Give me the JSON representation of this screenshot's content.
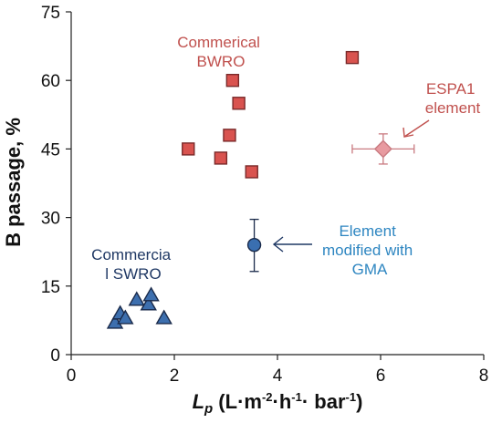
{
  "chart_data": {
    "type": "scatter",
    "xlim": [
      0,
      8
    ],
    "ylim": [
      0,
      75
    ],
    "x_ticks": [
      "0",
      "2",
      "4",
      "6",
      "8"
    ],
    "y_ticks": [
      "0",
      "15",
      "30",
      "45",
      "60",
      "75"
    ],
    "grid": false,
    "legend": "none",
    "xlabel": {
      "symbol": "L",
      "subscript": "p",
      "units": " (L·m",
      "units_sup1": "-2",
      "units_mid1": "·h",
      "units_sup2": "-1",
      "units_mid2": "· bar",
      "units_sup3": "-1",
      "units_end": ")"
    },
    "ylabel": "B passage, %",
    "series": [
      {
        "name": "Commerical BWRO",
        "marker": "square",
        "color": "#d9534f",
        "edge": "#7a2a2a",
        "points": [
          {
            "x": 2.27,
            "y": 45
          },
          {
            "x": 2.9,
            "y": 43
          },
          {
            "x": 3.07,
            "y": 48
          },
          {
            "x": 3.13,
            "y": 60
          },
          {
            "x": 3.25,
            "y": 55
          },
          {
            "x": 3.5,
            "y": 40
          },
          {
            "x": 5.45,
            "y": 65
          }
        ]
      },
      {
        "name": "Commercia l SWRO",
        "marker": "triangle",
        "color": "#3d6fae",
        "edge": "#1a2a4a",
        "points": [
          {
            "x": 0.85,
            "y": 7
          },
          {
            "x": 0.95,
            "y": 9
          },
          {
            "x": 1.05,
            "y": 8
          },
          {
            "x": 1.27,
            "y": 12
          },
          {
            "x": 1.5,
            "y": 11
          },
          {
            "x": 1.55,
            "y": 13
          },
          {
            "x": 1.8,
            "y": 8
          }
        ]
      },
      {
        "name": "ESPA1 element",
        "marker": "diamond",
        "color": "#e89aa0",
        "edge": "#c97a80",
        "points": [
          {
            "x": 6.05,
            "y": 45,
            "x_err": 0.6,
            "y_err": 3.3
          }
        ]
      },
      {
        "name": "Element modified with GMA",
        "marker": "circle",
        "color": "#3a6fb0",
        "edge": "#1a2a4a",
        "points": [
          {
            "x": 3.55,
            "y": 24,
            "y_err_low": 5.8,
            "y_err_high": 5.6
          }
        ]
      }
    ],
    "annotations": [
      {
        "lines": [
          "Commerical",
          "BWRO"
        ],
        "color": "#c0504d"
      },
      {
        "lines": [
          "ESPA1",
          "element"
        ],
        "color": "#c0504d"
      },
      {
        "lines": [
          "Element",
          "modified with",
          "GMA"
        ],
        "color": "#2e86c1"
      },
      {
        "lines": [
          "Commercia",
          "l SWRO"
        ],
        "color": "#1f3864"
      }
    ]
  }
}
